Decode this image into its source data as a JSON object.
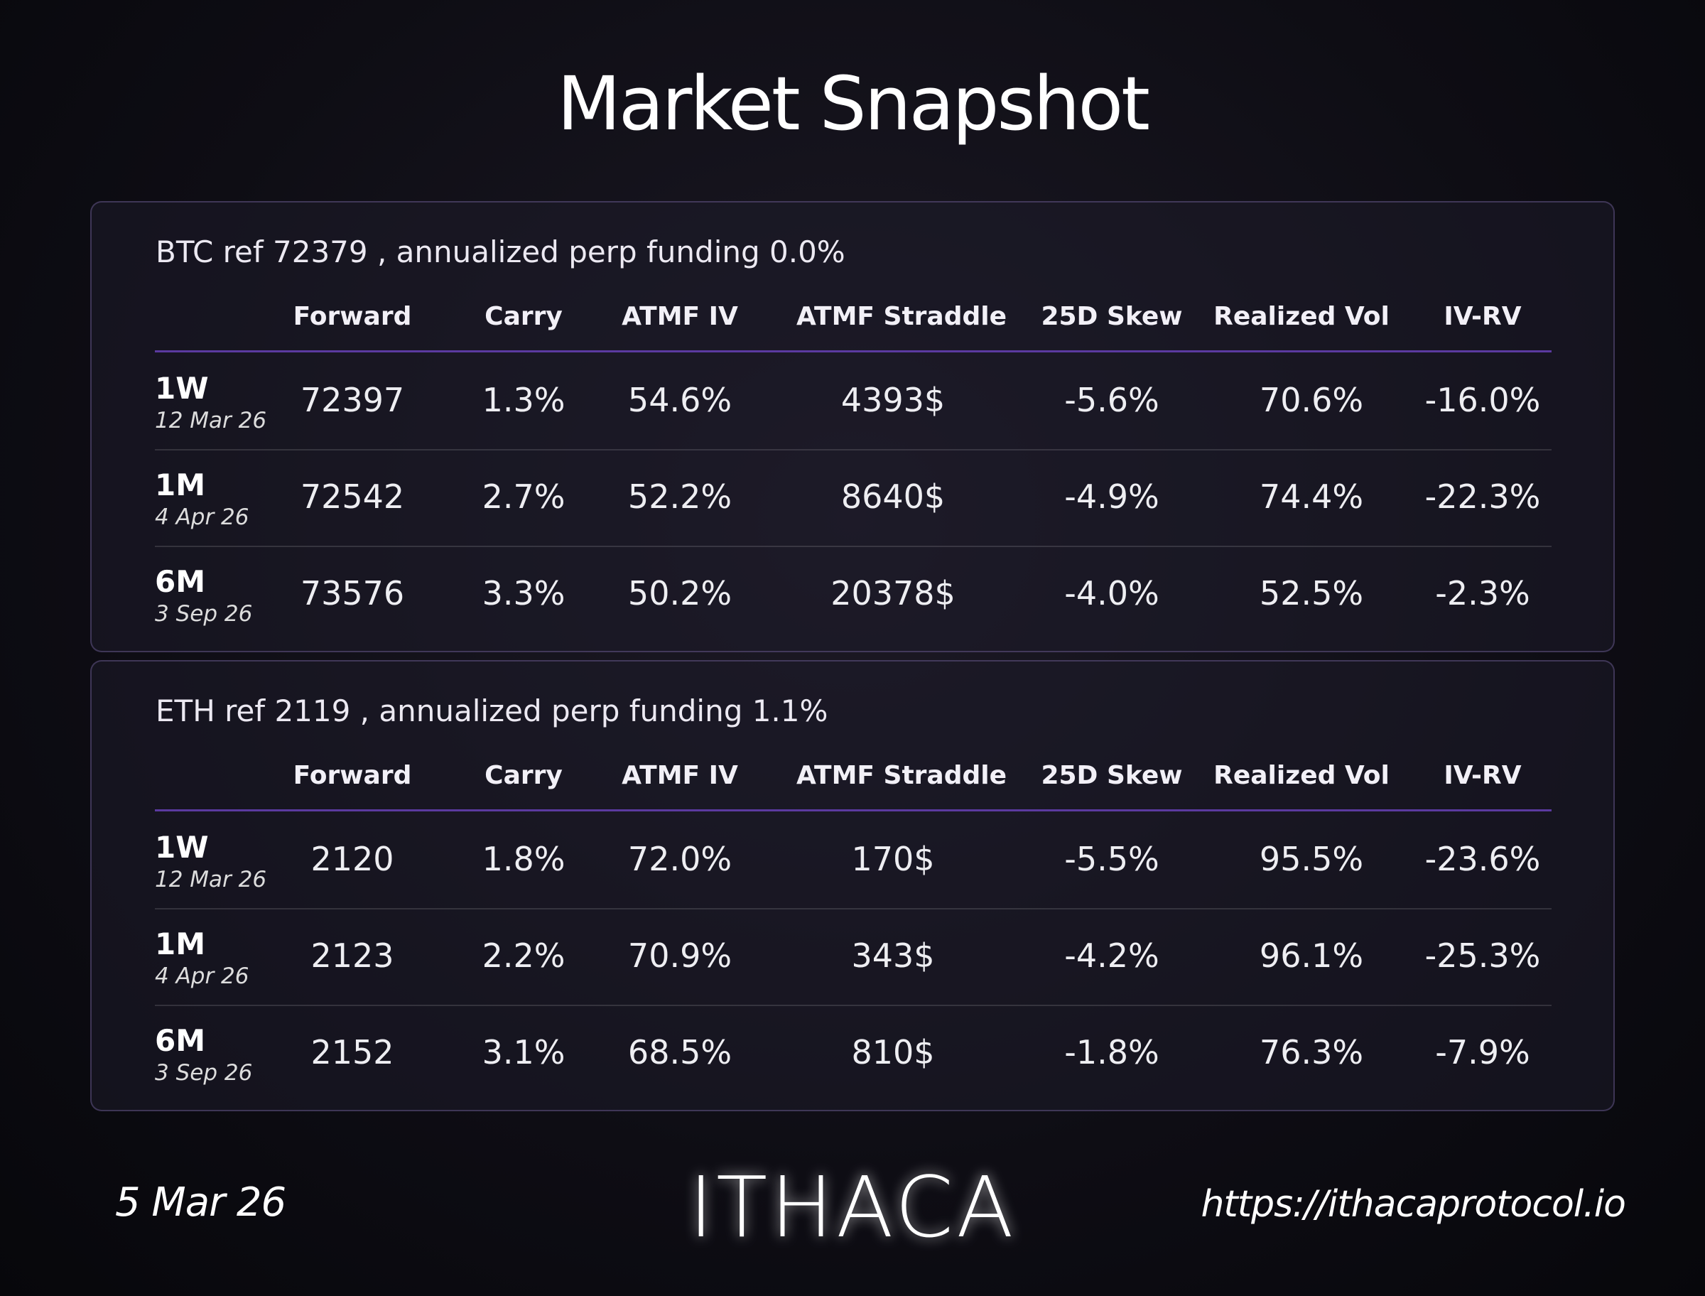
{
  "title": "Market Snapshot",
  "panels": [
    {
      "heading": "BTC ref 72379 , annualized perp funding 0.0%",
      "columns": [
        "Forward",
        "Carry",
        "ATMF IV",
        "ATMF Straddle",
        "25D Skew",
        "Realized Vol",
        "IV-RV"
      ],
      "rows": [
        {
          "tenor": "1W",
          "date": "12 Mar 26",
          "cells": [
            "72397",
            "1.3%",
            "54.6%",
            "4393$",
            "-5.6%",
            "70.6%",
            "-16.0%"
          ]
        },
        {
          "tenor": "1M",
          "date": "4 Apr 26",
          "cells": [
            "72542",
            "2.7%",
            "52.2%",
            "8640$",
            "-4.9%",
            "74.4%",
            "-22.3%"
          ]
        },
        {
          "tenor": "6M",
          "date": "3 Sep 26",
          "cells": [
            "73576",
            "3.3%",
            "50.2%",
            "20378$",
            "-4.0%",
            "52.5%",
            "-2.3%"
          ]
        }
      ]
    },
    {
      "heading": "ETH ref 2119 , annualized perp funding 1.1%",
      "columns": [
        "Forward",
        "Carry",
        "ATMF IV",
        "ATMF Straddle",
        "25D Skew",
        "Realized Vol",
        "IV-RV"
      ],
      "rows": [
        {
          "tenor": "1W",
          "date": "12 Mar 26",
          "cells": [
            "2120",
            "1.8%",
            "72.0%",
            "170$",
            "-5.5%",
            "95.5%",
            "-23.6%"
          ]
        },
        {
          "tenor": "1M",
          "date": "4 Apr 26",
          "cells": [
            "2123",
            "2.2%",
            "70.9%",
            "343$",
            "-4.2%",
            "96.1%",
            "-25.3%"
          ]
        },
        {
          "tenor": "6M",
          "date": "3 Sep 26",
          "cells": [
            "2152",
            "3.1%",
            "68.5%",
            "810$",
            "-1.8%",
            "76.3%",
            "-7.9%"
          ]
        }
      ]
    }
  ],
  "footer": {
    "date": "5 Mar 26",
    "logo": "ITHACA",
    "url": "https://ithacaprotocol.io"
  }
}
